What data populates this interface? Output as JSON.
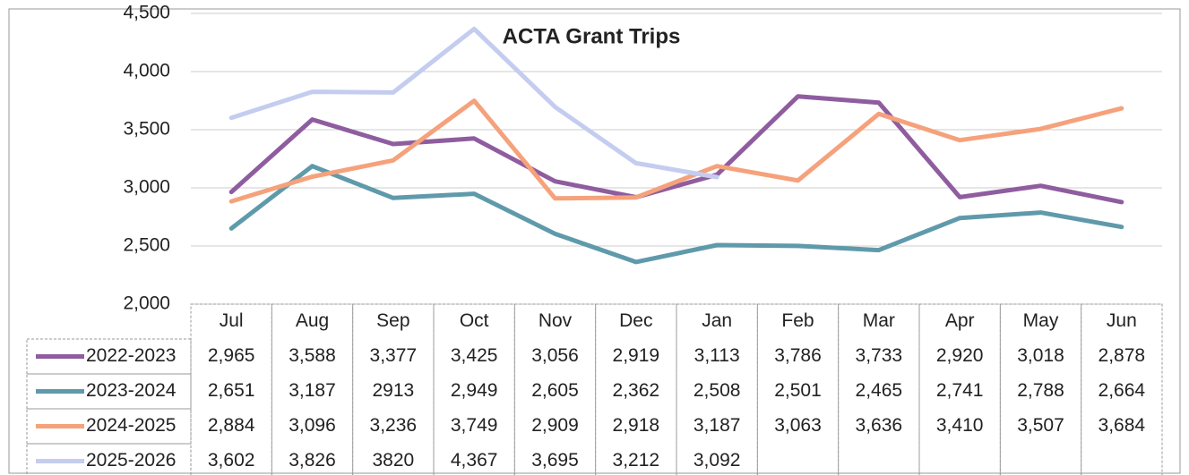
{
  "chart_data": {
    "type": "line",
    "title": "ACTA Grant Trips",
    "categories": [
      "Jul",
      "Aug",
      "Sep",
      "Oct",
      "Nov",
      "Dec",
      "Jan",
      "Feb",
      "Mar",
      "Apr",
      "May",
      "Jun"
    ],
    "ylim": [
      2000,
      4500
    ],
    "yticks": [
      {
        "value": 2000,
        "label": "2,000"
      },
      {
        "value": 2500,
        "label": "2,500"
      },
      {
        "value": 3000,
        "label": "3,000"
      },
      {
        "value": 3500,
        "label": "3,500"
      },
      {
        "value": 4000,
        "label": "4,000"
      },
      {
        "value": 4500,
        "label": "4,500"
      }
    ],
    "grid": true,
    "series": [
      {
        "name": "2022-2023",
        "color": "#8f5d9f",
        "values": [
          2965,
          3588,
          3377,
          3425,
          3056,
          2919,
          3113,
          3786,
          3733,
          2920,
          3018,
          2878
        ],
        "value_labels": [
          "2,965",
          "3,588",
          "3,377",
          "3,425",
          "3,056",
          "2,919",
          "3,113",
          "3,786",
          "3,733",
          "2,920",
          "3,018",
          "2,878"
        ]
      },
      {
        "name": "2023-2024",
        "color": "#5f9aab",
        "values": [
          2651,
          3187,
          2913,
          2949,
          2605,
          2362,
          2508,
          2501,
          2465,
          2741,
          2788,
          2664
        ],
        "value_labels": [
          "2,651",
          "3,187",
          "2913",
          "2,949",
          "2,605",
          "2,362",
          "2,508",
          "2,501",
          "2,465",
          "2,741",
          "2,788",
          "2,664"
        ]
      },
      {
        "name": "2024-2025",
        "color": "#f5a27c",
        "values": [
          2884,
          3096,
          3236,
          3749,
          2909,
          2918,
          3187,
          3063,
          3636,
          3410,
          3507,
          3684
        ],
        "value_labels": [
          "2,884",
          "3,096",
          "3,236",
          "3,749",
          "2,909",
          "2,918",
          "3,187",
          "3,063",
          "3,636",
          "3,410",
          "3,507",
          "3,684"
        ]
      },
      {
        "name": "2025-2026",
        "color": "#c4cdf0",
        "values": [
          3602,
          3826,
          3820,
          4367,
          3695,
          3212,
          3092,
          null,
          null,
          null,
          null,
          null
        ],
        "value_labels": [
          "3,602",
          "3,826",
          "3820",
          "4,367",
          "3,695",
          "3,212",
          "3,092",
          null,
          null,
          null,
          null,
          null
        ]
      }
    ]
  }
}
